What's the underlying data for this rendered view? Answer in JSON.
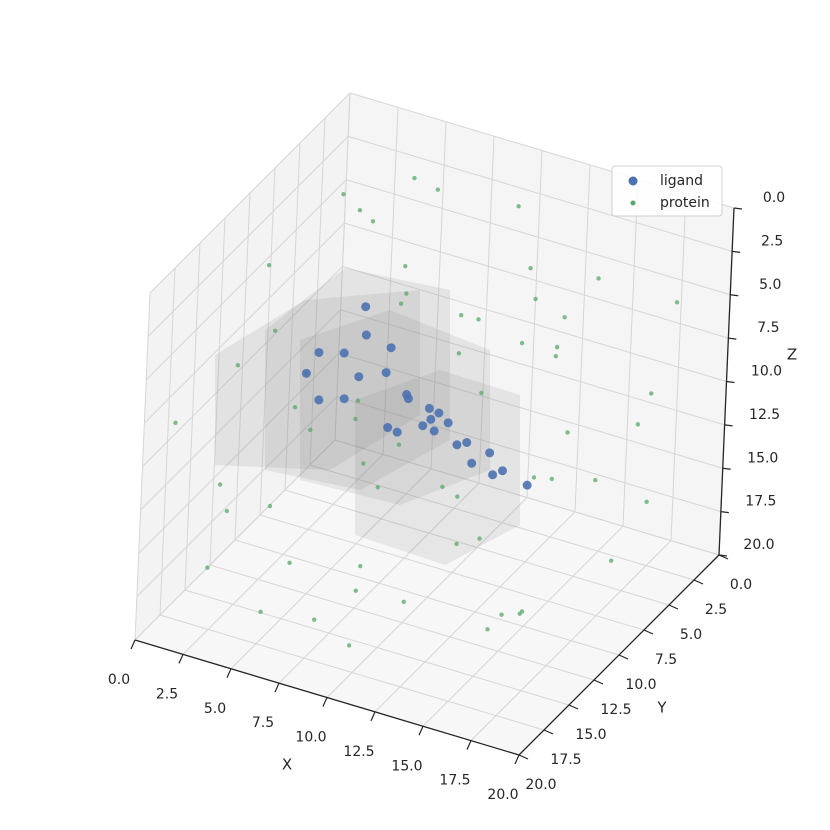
{
  "chart_data": {
    "type": "scatter3d",
    "xlabel": "X",
    "ylabel": "Y",
    "zlabel": "Z",
    "xlim": [
      0,
      20
    ],
    "ylim": [
      0,
      20
    ],
    "zlim": [
      20,
      0
    ],
    "xticks": [
      {
        "value": 0,
        "label": "0.0"
      },
      2.5,
      {
        "value": 5,
        "label": "5.0"
      },
      7.5,
      {
        "value": 10,
        "label": "10.0"
      },
      12.5,
      {
        "value": 15,
        "label": "15.0"
      },
      17.5,
      {
        "value": 20,
        "label": "20.0"
      }
    ],
    "yticks": [
      {
        "value": 0,
        "label": "0.0"
      },
      2.5,
      {
        "value": 5,
        "label": "5.0"
      },
      7.5,
      {
        "value": 10,
        "label": "10.0"
      },
      12.5,
      {
        "value": 15,
        "label": "15.0"
      },
      17.5,
      {
        "value": 20,
        "label": "20.0"
      }
    ],
    "zticks": [
      {
        "value": 0,
        "label": "0.0"
      },
      2.5,
      {
        "value": 5,
        "label": "5.0"
      },
      7.5,
      {
        "value": 10,
        "label": "10.0"
      },
      12.5,
      {
        "value": 15,
        "label": "15.0"
      },
      17.5,
      {
        "value": 20,
        "label": "20.0"
      }
    ],
    "grid": true,
    "legend": "upper right",
    "series": [
      {
        "name": "ligand",
        "color": "#4c72b0",
        "x": [
          6.2,
          6.3,
          3.9,
          5.2,
          7.6,
          3.3,
          6.0,
          7.4,
          4.0,
          5.3,
          8.5,
          8.6,
          9.7,
          10.2,
          9.8,
          9.4,
          7.6,
          8.1,
          10.0,
          10.7,
          11.2,
          11.7,
          12.9,
          12.0,
          13.6,
          13.1,
          14.9
        ],
        "y": [
          10,
          10,
          10,
          10,
          10,
          10,
          10,
          10,
          10,
          10,
          10,
          10,
          10,
          10,
          10,
          10,
          10,
          10,
          10,
          10,
          10,
          10,
          10,
          10,
          10,
          10,
          10
        ],
        "z": [
          4.5,
          6.1,
          7.9,
          7.5,
          6.4,
          9.3,
          8.6,
          7.9,
          10.6,
          10.1,
          8.8,
          9.0,
          9.2,
          9.3,
          9.8,
          10.3,
          11.0,
          11.1,
          10.4,
          9.7,
          10.8,
          10.5,
          10.7,
          11.6,
          11.5,
          11.9,
          11.9
        ]
      },
      {
        "name": "protein",
        "color": "#55a868",
        "x": [
          1.2,
          3.5,
          0.8,
          6.1,
          9.4,
          12.7,
          15.3,
          18.2,
          2.4,
          4.9,
          7.7,
          10.3,
          13.8,
          16.6,
          19.1,
          0.5,
          3.1,
          5.6,
          8.2,
          11.5,
          14.2,
          17.4,
          1.9,
          4.3,
          6.8,
          9.9,
          12.1,
          15.8,
          18.7,
          2.7,
          5.2,
          7.3,
          10.8,
          13.3,
          16.1,
          19.5,
          0.3,
          3.8,
          6.4,
          9.1,
          11.9,
          14.7,
          17.9,
          1.5,
          4.6,
          8.8,
          12.4,
          15.1,
          18.4,
          2.2,
          5.9,
          9.6,
          13.1,
          16.9,
          7.0,
          10.5,
          14.0,
          3.3,
          11.2,
          17.0
        ],
        "y": [
          15.2,
          18.1,
          9.3,
          19.4,
          16.7,
          17.9,
          14.3,
          18.8,
          5.1,
          3.4,
          1.2,
          2.8,
          4.6,
          0.9,
          3.7,
          11.5,
          12.8,
          8.4,
          13.6,
          10.2,
          7.9,
          11.1,
          2.3,
          6.7,
          4.2,
          7.5,
          1.8,
          5.3,
          8.6,
          17.3,
          14.9,
          16.2,
          19.1,
          15.6,
          12.4,
          16.8,
          3.9,
          0.6,
          9.8,
          11.7,
          9.1,
          2.5,
          4.8,
          19.8,
          16.1,
          13.2,
          18.5,
          10.6,
          14.7,
          7.1,
          5.7,
          0.4,
          6.3,
          1.5,
          12.0,
          8.3,
          15.9,
          10.9,
          3.1,
          19.0
        ],
        "z": [
          18.2,
          12.5,
          4.3,
          16.7,
          19.1,
          14.8,
          17.6,
          13.2,
          2.1,
          6.4,
          9.8,
          1.5,
          5.7,
          11.3,
          3.6,
          8.9,
          15.4,
          0.7,
          10.8,
          16.3,
          12.9,
          7.4,
          4.8,
          13.5,
          0.9,
          5.2,
          9.6,
          2.4,
          15.8,
          11.7,
          7.8,
          18.6,
          14.1,
          9.3,
          17.4,
          6.1,
          13.8,
          3.3,
          19.5,
          1.8,
          8.1,
          16.0,
          10.4,
          7.1,
          2.9,
          12.2,
          5.5,
          18.9,
          0.6,
          14.6,
          6.9,
          11.0,
          3.9,
          17.1,
          8.5,
          15.0,
          1.2,
          19.7,
          4.6,
          9.1
        ]
      }
    ]
  }
}
